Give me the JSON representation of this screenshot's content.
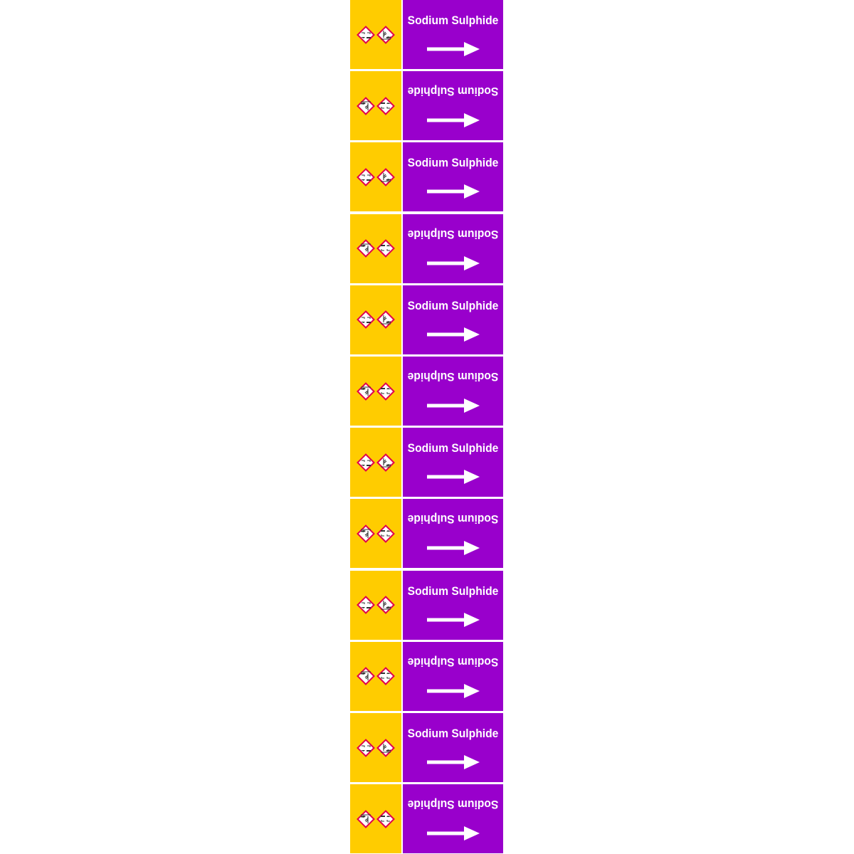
{
  "colors": {
    "hazard_panel": "#ffcc00",
    "name_panel": "#9900cc",
    "ghs_border": "#e0004d",
    "text": "#ffffff"
  },
  "hazard_icons": [
    "ghs05-corrosive-icon",
    "ghs09-environment-icon"
  ],
  "labels": [
    {
      "text": "Sodium Sulphide",
      "flipped": false
    },
    {
      "text": "Sodium Sulphide",
      "flipped": true
    },
    {
      "text": "Sodium Sulphide",
      "flipped": false
    },
    {
      "text": "Sodium Sulphide",
      "flipped": true
    },
    {
      "text": "Sodium Sulphide",
      "flipped": false
    },
    {
      "text": "Sodium Sulphide",
      "flipped": true
    },
    {
      "text": "Sodium Sulphide",
      "flipped": false
    },
    {
      "text": "Sodium Sulphide",
      "flipped": true
    },
    {
      "text": "Sodium Sulphide",
      "flipped": false
    },
    {
      "text": "Sodium Sulphide",
      "flipped": true
    },
    {
      "text": "Sodium Sulphide",
      "flipped": false
    },
    {
      "text": "Sodium Sulphide",
      "flipped": true
    }
  ]
}
